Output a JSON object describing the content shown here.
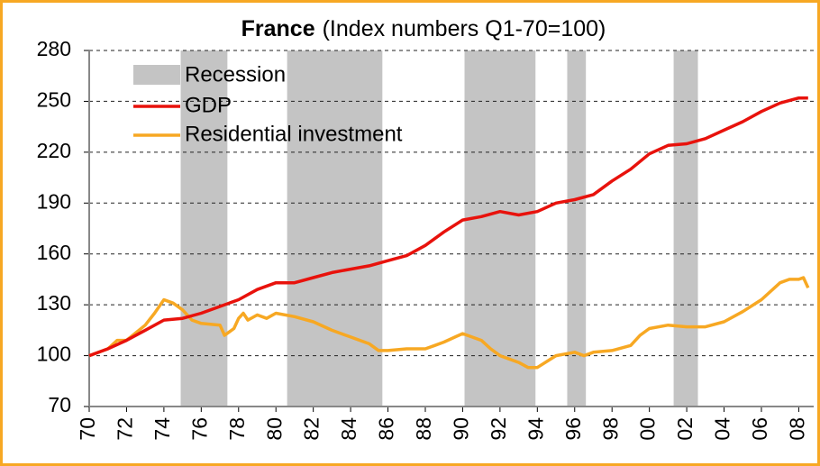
{
  "chart_data": {
    "type": "line",
    "title": "France",
    "subtitle": "(Index numbers Q1-70=100)",
    "recessions": {
      "name": "Recession",
      "color": "#c4c4c4",
      "ranges": [
        [
          1974.9,
          1977.4
        ],
        [
          1980.6,
          1985.7
        ],
        [
          1990.1,
          1993.9
        ],
        [
          1995.6,
          1996.6
        ],
        [
          2001.3,
          2002.6
        ]
      ]
    },
    "series": [
      {
        "name": "GDP",
        "color": "#e8120c",
        "x": [
          1970,
          1971,
          1972,
          1973,
          1974,
          1975,
          1976,
          1977,
          1978,
          1979,
          1980,
          1981,
          1982,
          1983,
          1984,
          1985,
          1986,
          1987,
          1988,
          1989,
          1990,
          1991,
          1992,
          1993,
          1994,
          1995,
          1996,
          1997,
          1998,
          1999,
          2000,
          2001,
          2002,
          2003,
          2004,
          2005,
          2006,
          2007,
          2008,
          2008.5
        ],
        "values": [
          100,
          104,
          109,
          115,
          121,
          122,
          125,
          129,
          133,
          139,
          143,
          143,
          146,
          149,
          151,
          153,
          156,
          159,
          165,
          173,
          180,
          182,
          185,
          183,
          185,
          190,
          192,
          195,
          203,
          210,
          219,
          224,
          225,
          228,
          233,
          238,
          244,
          249,
          252,
          252
        ]
      },
      {
        "name": "Residential investment",
        "color": "#f7a823",
        "x": [
          1970,
          1971,
          1971.5,
          1972,
          1973,
          1973.5,
          1974,
          1974.5,
          1975,
          1975.5,
          1976,
          1977,
          1977.25,
          1977.75,
          1978,
          1978.25,
          1978.5,
          1979,
          1979.5,
          1980,
          1981,
          1982,
          1983,
          1984,
          1985,
          1985.5,
          1986,
          1987,
          1988,
          1988.5,
          1989,
          1990,
          1991,
          1991.5,
          1992,
          1992.5,
          1993,
          1993.5,
          1994,
          1995,
          1996,
          1996.5,
          1997,
          1998,
          1999,
          1999.5,
          2000,
          2001,
          2002,
          2003,
          2004,
          2005,
          2006,
          2007,
          2007.5,
          2008,
          2008.25,
          2008.5
        ],
        "values": [
          100,
          104,
          109,
          109,
          118,
          125,
          133,
          131,
          127,
          121,
          119,
          118,
          112,
          116,
          122,
          125,
          121,
          124,
          122,
          125,
          123,
          120,
          115,
          111,
          107,
          103,
          103,
          104,
          104,
          106,
          108,
          113,
          109,
          104,
          100,
          98,
          96,
          93,
          93,
          100,
          102,
          100,
          102,
          103,
          106,
          112,
          116,
          118,
          117,
          117,
          120,
          126,
          133,
          143,
          145,
          145,
          146,
          140
        ]
      }
    ],
    "xlim": [
      1970,
      2008.8
    ],
    "xticks": [
      {
        "value": 1970,
        "label": "70"
      },
      {
        "value": 1972,
        "label": "72"
      },
      {
        "value": 1974,
        "label": "74"
      },
      {
        "value": 1976,
        "label": "76"
      },
      {
        "value": 1978,
        "label": "78"
      },
      {
        "value": 1980,
        "label": "80"
      },
      {
        "value": 1982,
        "label": "82"
      },
      {
        "value": 1984,
        "label": "84"
      },
      {
        "value": 1986,
        "label": "86"
      },
      {
        "value": 1988,
        "label": "88"
      },
      {
        "value": 1990,
        "label": "90"
      },
      {
        "value": 1992,
        "label": "92"
      },
      {
        "value": 1994,
        "label": "94"
      },
      {
        "value": 1996,
        "label": "96"
      },
      {
        "value": 1998,
        "label": "98"
      },
      {
        "value": 2000,
        "label": "00"
      },
      {
        "value": 2002,
        "label": "02"
      },
      {
        "value": 2004,
        "label": "04"
      },
      {
        "value": 2006,
        "label": "06"
      },
      {
        "value": 2008,
        "label": "08"
      }
    ],
    "ylim": [
      70,
      280
    ],
    "yticks": [
      70,
      100,
      130,
      160,
      190,
      220,
      250,
      280
    ],
    "grid": true
  }
}
